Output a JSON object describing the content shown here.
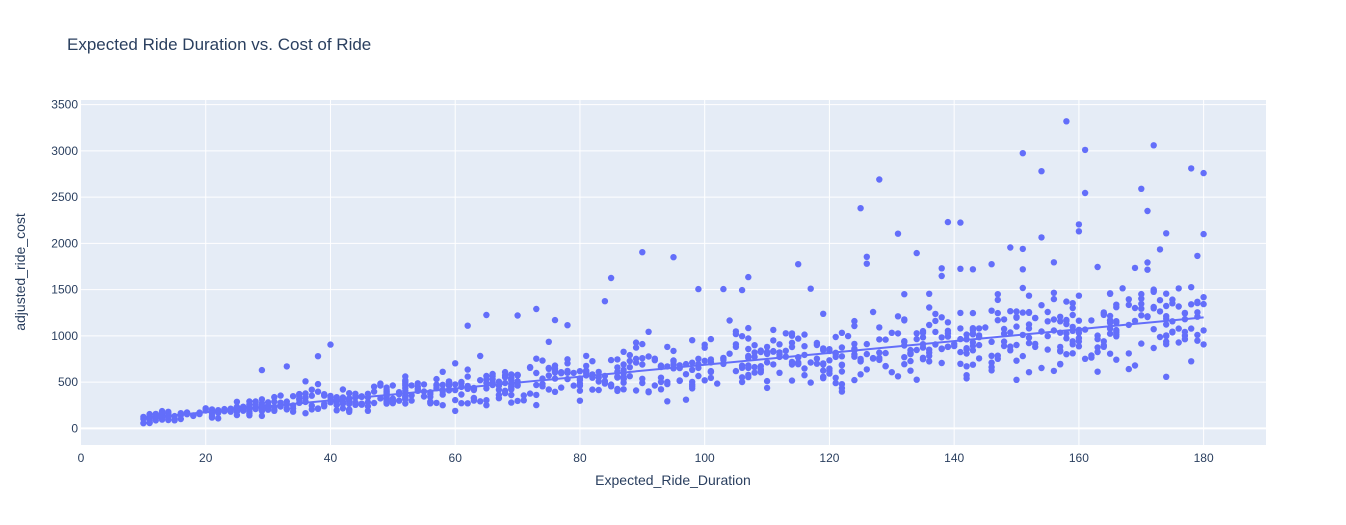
{
  "chart_data": {
    "type": "scatter",
    "title": "Expected Ride Duration vs. Cost of Ride",
    "xlabel": "Expected_Ride_Duration",
    "ylabel": "adjusted_ride_cost",
    "xlim": [
      0,
      190
    ],
    "ylim": [
      -180,
      3550
    ],
    "xticks": [
      0,
      20,
      40,
      60,
      80,
      100,
      120,
      140,
      160,
      180
    ],
    "yticks": [
      0,
      500,
      1000,
      1500,
      2000,
      2500,
      3000,
      3500
    ],
    "grid": true,
    "legend": "none",
    "colors": {
      "marker": "#636efa",
      "plot_bg": "#e5ecf6",
      "text": "#2a3f5f"
    },
    "trendline": {
      "type": "ols",
      "x": [
        10,
        180
      ],
      "y": [
        110,
        1200
      ]
    },
    "outliers": [
      [
        158,
        3320
      ],
      [
        172,
        3060
      ],
      [
        161,
        3010
      ],
      [
        151,
        2975
      ],
      [
        178,
        2810
      ],
      [
        180,
        2760
      ],
      [
        154,
        2780
      ],
      [
        128,
        2690
      ],
      [
        170,
        2590
      ],
      [
        161,
        2545
      ],
      [
        125,
        2380
      ],
      [
        171,
        2350
      ],
      [
        139,
        2230
      ],
      [
        141,
        2225
      ],
      [
        160,
        2205
      ],
      [
        160,
        2130
      ],
      [
        131,
        2105
      ],
      [
        180,
        2100
      ],
      [
        154,
        2065
      ],
      [
        149,
        1955
      ],
      [
        151,
        1940
      ],
      [
        173,
        1935
      ],
      [
        90,
        1905
      ],
      [
        134,
        1895
      ],
      [
        95,
        1850
      ],
      [
        126,
        1855
      ],
      [
        179,
        1865
      ],
      [
        126,
        1780
      ],
      [
        115,
        1775
      ],
      [
        146,
        1775
      ],
      [
        156,
        1795
      ],
      [
        163,
        1745
      ],
      [
        169,
        1735
      ],
      [
        138,
        1730
      ],
      [
        141,
        1725
      ],
      [
        151,
        1720
      ],
      [
        85,
        1625
      ],
      [
        107,
        1635
      ],
      [
        117,
        1510
      ],
      [
        99,
        1505
      ],
      [
        103,
        1505
      ],
      [
        106,
        1495
      ],
      [
        78,
        1115
      ],
      [
        76,
        1170
      ],
      [
        73,
        1290
      ],
      [
        70,
        1220
      ],
      [
        65,
        1225
      ],
      [
        62,
        1110
      ],
      [
        84,
        1375
      ],
      [
        40,
        905
      ],
      [
        38,
        780
      ],
      [
        33,
        670
      ],
      [
        29,
        630
      ]
    ],
    "points_note": ""
  }
}
